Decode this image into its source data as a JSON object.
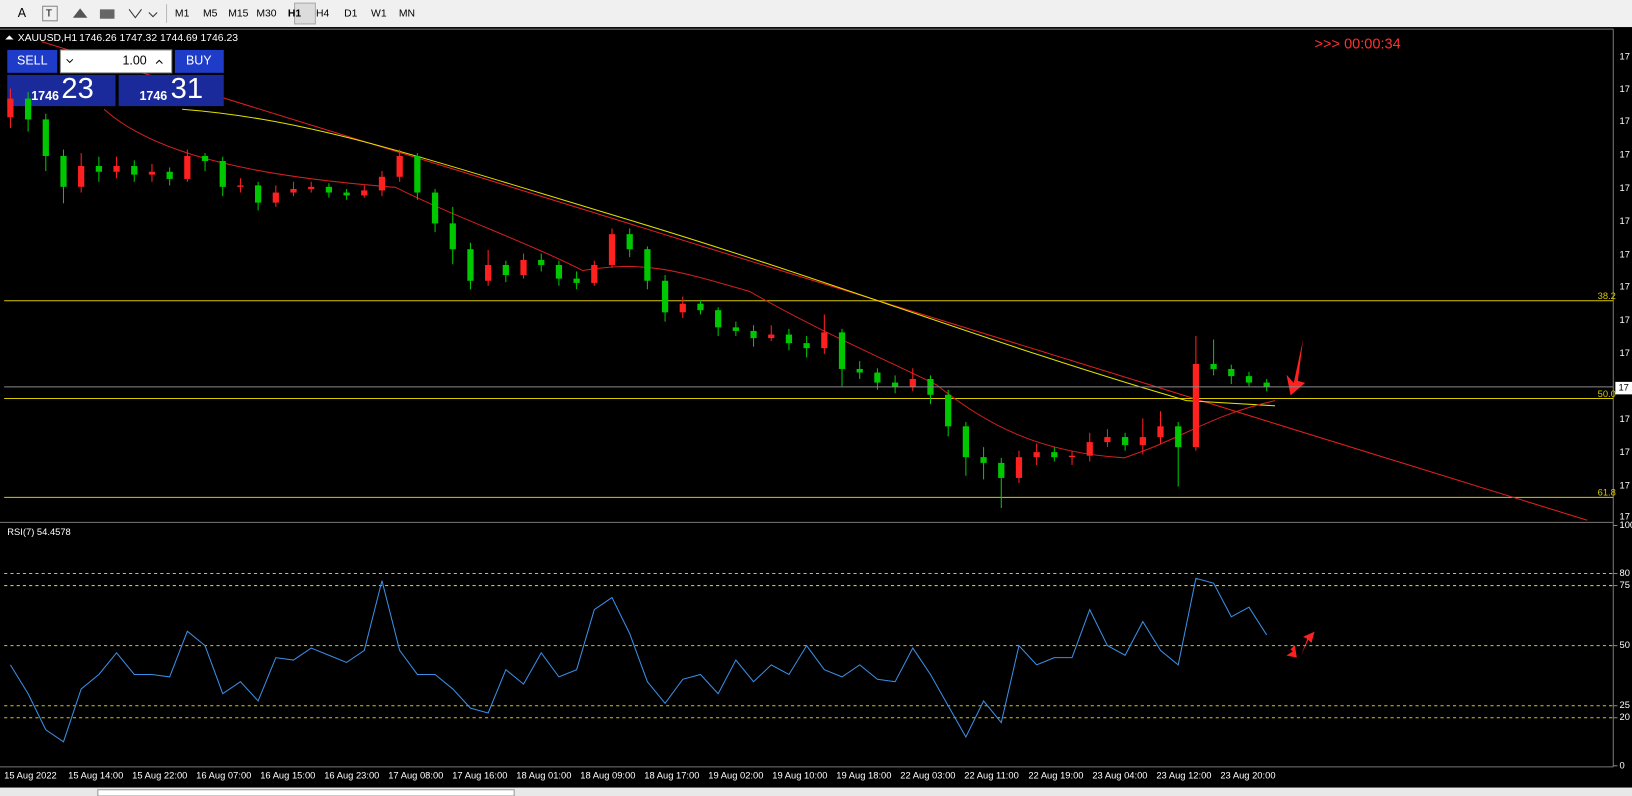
{
  "toolbar": {
    "tools": [
      "A",
      "T"
    ],
    "timeframes": [
      "M1",
      "M5",
      "M15",
      "M30",
      "H1",
      "H4",
      "D1",
      "W1",
      "MN"
    ],
    "active": "H1"
  },
  "header": {
    "symbol": "XAUUSD,H1",
    "ohlc": "1746.26 1747.32 1744.69 1746.23"
  },
  "trade_panel": {
    "sell": "SELL",
    "buy": "BUY",
    "lot": "1.00",
    "bid_big": "1746",
    "bid_small": "23",
    "ask_big": "1746",
    "ask_small": "31"
  },
  "timer": ">>> 00:00:34",
  "fib_labels": [
    "38.2",
    "50.0",
    "61.8"
  ],
  "price_axis_labels": [
    "17",
    "17",
    "17",
    "17",
    "17",
    "17",
    "17",
    "17",
    "17",
    "17",
    "17",
    "17",
    "17",
    "17"
  ],
  "price_tag": "17",
  "x_labels": [
    "15 Aug 2022",
    "15 Aug 14:00",
    "15 Aug 22:00",
    "16 Aug 07:00",
    "16 Aug 15:00",
    "16 Aug 23:00",
    "17 Aug 08:00",
    "17 Aug 16:00",
    "18 Aug 01:00",
    "18 Aug 09:00",
    "18 Aug 17:00",
    "19 Aug 02:00",
    "19 Aug 10:00",
    "19 Aug 18:00",
    "22 Aug 03:00",
    "22 Aug 11:00",
    "22 Aug 19:00",
    "23 Aug 04:00",
    "23 Aug 12:00",
    "23 Aug 20:00"
  ],
  "chart_data": {
    "type": "candlestick",
    "ylim": [
      1727.8,
      1796
    ],
    "up_color": "#ff2020",
    "down_color": "#00c800",
    "candles": [
      [
        1784.0,
        1788.0,
        1782.5,
        1786.6
      ],
      [
        1786.6,
        1787.5,
        1782.0,
        1783.7
      ],
      [
        1783.7,
        1784.5,
        1776.5,
        1778.6
      ],
      [
        1778.6,
        1779.5,
        1772.0,
        1774.3
      ],
      [
        1774.3,
        1779.0,
        1773.5,
        1777.2
      ],
      [
        1777.2,
        1778.5,
        1775.0,
        1776.4
      ],
      [
        1776.4,
        1778.5,
        1775.5,
        1777.2
      ],
      [
        1777.2,
        1778.0,
        1775.0,
        1776.0
      ],
      [
        1776.0,
        1777.5,
        1775.0,
        1776.4
      ],
      [
        1776.4,
        1777.0,
        1774.5,
        1775.4
      ],
      [
        1775.4,
        1779.5,
        1775.0,
        1778.6
      ],
      [
        1778.6,
        1779.0,
        1776.5,
        1777.9
      ],
      [
        1777.9,
        1778.5,
        1773.0,
        1774.3
      ],
      [
        1774.3,
        1775.5,
        1773.5,
        1774.5
      ],
      [
        1774.5,
        1775.0,
        1771.0,
        1772.1
      ],
      [
        1772.1,
        1774.5,
        1771.5,
        1773.5
      ],
      [
        1773.5,
        1775.0,
        1773.0,
        1774.0
      ],
      [
        1774.0,
        1775.0,
        1773.5,
        1774.3
      ],
      [
        1774.3,
        1774.8,
        1772.8,
        1773.5
      ],
      [
        1773.5,
        1774.0,
        1772.5,
        1773.1
      ],
      [
        1773.1,
        1774.5,
        1772.8,
        1773.8
      ],
      [
        1773.8,
        1776.5,
        1773.0,
        1775.7
      ],
      [
        1775.7,
        1779.5,
        1775.0,
        1778.6
      ],
      [
        1778.6,
        1779.0,
        1772.5,
        1773.5
      ],
      [
        1773.5,
        1774.0,
        1768.0,
        1769.2
      ],
      [
        1769.2,
        1771.5,
        1763.5,
        1765.6
      ],
      [
        1765.6,
        1766.5,
        1760.0,
        1761.2
      ],
      [
        1761.2,
        1765.5,
        1760.5,
        1763.4
      ],
      [
        1763.4,
        1764.0,
        1761.0,
        1762.0
      ],
      [
        1762.0,
        1765.0,
        1761.5,
        1764.1
      ],
      [
        1764.1,
        1765.0,
        1762.5,
        1763.4
      ],
      [
        1763.4,
        1764.0,
        1760.5,
        1761.5
      ],
      [
        1761.5,
        1762.5,
        1760.0,
        1760.9
      ],
      [
        1760.9,
        1764.0,
        1760.5,
        1763.4
      ],
      [
        1763.4,
        1768.5,
        1763.0,
        1767.7
      ],
      [
        1767.7,
        1768.5,
        1764.5,
        1765.6
      ],
      [
        1765.6,
        1766.0,
        1760.0,
        1761.2
      ],
      [
        1761.2,
        1762.0,
        1755.5,
        1756.8
      ],
      [
        1756.8,
        1759.0,
        1756.0,
        1758.0
      ],
      [
        1758.0,
        1758.5,
        1756.5,
        1757.1
      ],
      [
        1757.1,
        1757.5,
        1753.5,
        1754.7
      ],
      [
        1754.7,
        1755.5,
        1753.5,
        1754.2
      ],
      [
        1754.2,
        1755.0,
        1752.0,
        1753.2
      ],
      [
        1753.2,
        1755.0,
        1752.8,
        1753.7
      ],
      [
        1753.7,
        1754.5,
        1751.5,
        1752.5
      ],
      [
        1752.5,
        1753.5,
        1750.5,
        1751.8
      ],
      [
        1751.8,
        1756.5,
        1751.0,
        1754.0
      ],
      [
        1754.0,
        1754.5,
        1746.5,
        1748.9
      ],
      [
        1748.9,
        1750.0,
        1747.5,
        1748.4
      ],
      [
        1748.4,
        1749.0,
        1746.0,
        1747.0
      ],
      [
        1747.0,
        1748.0,
        1745.5,
        1746.4
      ],
      [
        1746.4,
        1749.0,
        1745.8,
        1747.5
      ],
      [
        1747.5,
        1748.0,
        1744.0,
        1745.3
      ],
      [
        1745.3,
        1746.0,
        1739.5,
        1740.9
      ],
      [
        1740.9,
        1741.5,
        1734.0,
        1736.6
      ],
      [
        1736.6,
        1738.0,
        1733.5,
        1735.8
      ],
      [
        1735.8,
        1736.5,
        1729.5,
        1733.7
      ],
      [
        1733.7,
        1737.5,
        1733.0,
        1736.6
      ],
      [
        1736.6,
        1738.5,
        1735.5,
        1737.3
      ],
      [
        1737.3,
        1738.0,
        1736.0,
        1736.6
      ],
      [
        1736.6,
        1737.5,
        1735.5,
        1736.8
      ],
      [
        1736.8,
        1740.0,
        1736.0,
        1738.7
      ],
      [
        1738.7,
        1740.5,
        1738.0,
        1739.4
      ],
      [
        1739.4,
        1740.0,
        1737.5,
        1738.3
      ],
      [
        1738.3,
        1742.0,
        1737.0,
        1739.4
      ],
      [
        1739.4,
        1743.0,
        1738.5,
        1740.9
      ],
      [
        1740.9,
        1741.5,
        1732.5,
        1738.0
      ],
      [
        1738.0,
        1753.5,
        1737.5,
        1749.6
      ],
      [
        1749.6,
        1753.0,
        1748.0,
        1748.9
      ],
      [
        1748.9,
        1749.5,
        1746.8,
        1747.9
      ],
      [
        1747.9,
        1748.5,
        1746.5,
        1747.0
      ],
      [
        1747.0,
        1747.5,
        1745.8,
        1746.4
      ]
    ],
    "rsi": {
      "label": "RSI(7) 54.4578",
      "color": "#3a8ee6",
      "ylim": [
        0,
        100
      ],
      "levels": [
        80,
        75,
        50,
        25,
        20
      ],
      "yticks": [
        100,
        80,
        75,
        50,
        25,
        20,
        0
      ],
      "values": [
        42,
        30,
        15,
        10,
        32,
        38,
        47,
        38,
        38,
        37,
        56,
        50,
        30,
        35,
        27,
        45,
        44,
        49,
        46,
        43,
        48,
        77,
        48,
        38,
        38,
        32,
        24,
        22,
        40,
        34,
        47,
        37,
        40,
        65,
        70,
        55,
        35,
        26,
        36,
        38,
        30,
        44,
        35,
        42,
        38,
        50,
        40,
        37,
        42,
        36,
        35,
        49,
        38,
        25,
        12,
        27,
        18,
        50,
        42,
        45,
        45,
        65,
        50,
        46,
        60,
        48,
        42,
        78,
        76,
        62,
        66,
        54.4578
      ]
    }
  }
}
